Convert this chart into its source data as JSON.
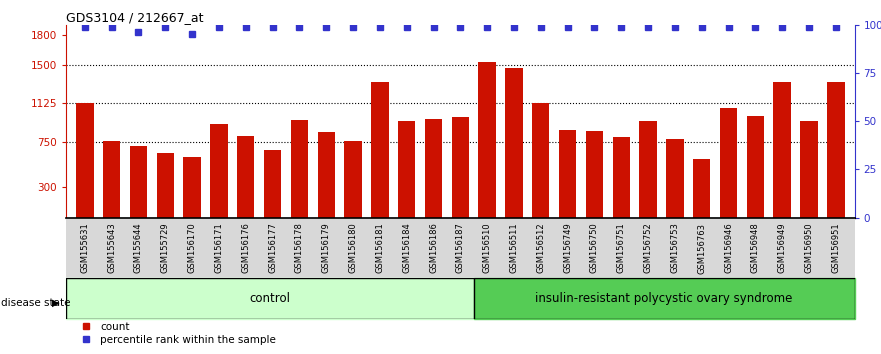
{
  "title": "GDS3104 / 212667_at",
  "samples": [
    "GSM155631",
    "GSM155643",
    "GSM155644",
    "GSM155729",
    "GSM156170",
    "GSM156171",
    "GSM156176",
    "GSM156177",
    "GSM156178",
    "GSM156179",
    "GSM156180",
    "GSM156181",
    "GSM156184",
    "GSM156186",
    "GSM156187",
    "GSM156510",
    "GSM156511",
    "GSM156512",
    "GSM156749",
    "GSM156750",
    "GSM156751",
    "GSM156752",
    "GSM156753",
    "GSM156763",
    "GSM156946",
    "GSM156948",
    "GSM156949",
    "GSM156950",
    "GSM156951"
  ],
  "counts": [
    1130,
    760,
    710,
    640,
    600,
    920,
    800,
    670,
    960,
    840,
    760,
    1340,
    950,
    970,
    990,
    1530,
    1470,
    1130,
    860,
    850,
    790,
    950,
    780,
    580,
    1080,
    1000,
    1340,
    950,
    1340
  ],
  "percentile_ranks": [
    99,
    99,
    96,
    99,
    95,
    99,
    99,
    99,
    99,
    99,
    99,
    99,
    99,
    99,
    99,
    99,
    99,
    99,
    99,
    99,
    99,
    99,
    99,
    99,
    99,
    99,
    99,
    99,
    99
  ],
  "group_labels": [
    "control",
    "insulin-resistant polycystic ovary syndrome"
  ],
  "n_control": 15,
  "n_disease": 14,
  "bar_color": "#cc1100",
  "dot_color": "#3333cc",
  "left_yticks": [
    300,
    750,
    1125,
    1500,
    1800
  ],
  "right_yticks": [
    0,
    25,
    50,
    75,
    100
  ],
  "ylim_left": [
    0,
    1900
  ],
  "bg_color": "#d8d8d8",
  "control_bg": "#ccffcc",
  "disease_bg": "#55cc55",
  "title_fontsize": 9
}
